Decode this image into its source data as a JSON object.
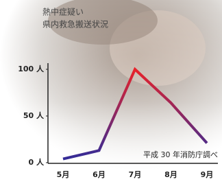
{
  "chart_data": {
    "type": "line",
    "title": [
      "熱中症疑い",
      "県内救急搬送状況"
    ],
    "categories": [
      "5月",
      "6月",
      "7月",
      "8月",
      "9月"
    ],
    "values": [
      4,
      13,
      100,
      64,
      21
    ],
    "colors": [
      "#e8222a",
      "#2c2c9c"
    ],
    "ylim": [
      0,
      100
    ],
    "yticks": [
      {
        "value": 0,
        "label": "0 人"
      },
      {
        "value": 50,
        "label": "50 人"
      },
      {
        "value": 100,
        "label": "100 人"
      }
    ],
    "note": "平成 30 年消防庁調べ"
  }
}
